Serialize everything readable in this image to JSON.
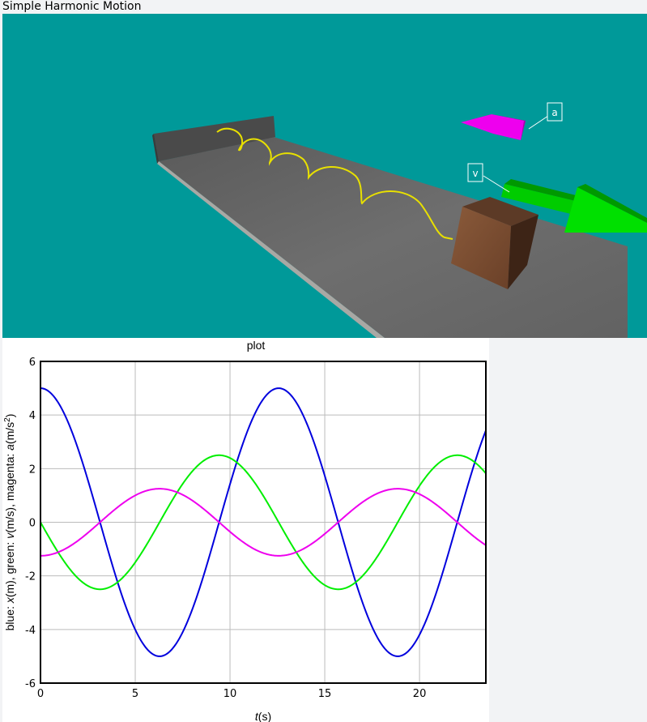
{
  "window": {
    "title": "Simple Harmonic Motion"
  },
  "scene": {
    "background_color": "#009999",
    "labels": {
      "acceleration": "a",
      "velocity": "v"
    },
    "colors": {
      "spring": "#e8e000",
      "velocity_arrow": "#00e000",
      "acceleration_arrow": "#ee00ee",
      "floor": "#666666",
      "block": "#6b4a33"
    }
  },
  "chart_data": {
    "type": "line",
    "title": "plot",
    "xlabel": "t(s)",
    "ylabel_parts": [
      "blue: ",
      "x",
      "(m), green: ",
      "v",
      "(m/s), magenta: ",
      "a",
      "(m/s",
      "2",
      ")"
    ],
    "xlim": [
      0,
      23.5
    ],
    "ylim": [
      -6,
      6
    ],
    "x_ticks": [
      0,
      5,
      10,
      15,
      20
    ],
    "y_ticks": [
      -6,
      -4,
      -2,
      0,
      2,
      4,
      6
    ],
    "grid": true,
    "series": [
      {
        "color": "#0000dd",
        "amplitude": 5,
        "omega": 0.5,
        "phase": 0,
        "kind": "cos",
        "sample_x": [
          0,
          6.28,
          12.57,
          18.85
        ],
        "sample_y": [
          5,
          -5,
          5,
          -5
        ]
      },
      {
        "color": "#00ee00",
        "amplitude": -2.5,
        "omega": 0.5,
        "phase": 0,
        "kind": "sin",
        "sample_x": [
          0,
          3.14,
          9.42,
          15.71,
          21.99
        ],
        "sample_y": [
          0,
          -2.5,
          2.5,
          -2.5,
          2.5
        ]
      },
      {
        "color": "#ee00ee",
        "amplitude": -1.25,
        "omega": 0.5,
        "phase": 0,
        "kind": "cos",
        "sample_x": [
          0,
          6.28,
          12.57,
          18.85
        ],
        "sample_y": [
          -1.25,
          1.25,
          -1.25,
          1.25
        ]
      }
    ]
  }
}
